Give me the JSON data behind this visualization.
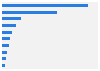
{
  "values": [
    39.6,
    25.0,
    8.5,
    6.2,
    4.8,
    3.8,
    3.0,
    2.5,
    2.0,
    1.2
  ],
  "bar_color": "#2a7de1",
  "background_color": "#ffffff",
  "plot_background": "#f2f2f2",
  "xlim": [
    0,
    44
  ],
  "bar_height": 0.45
}
